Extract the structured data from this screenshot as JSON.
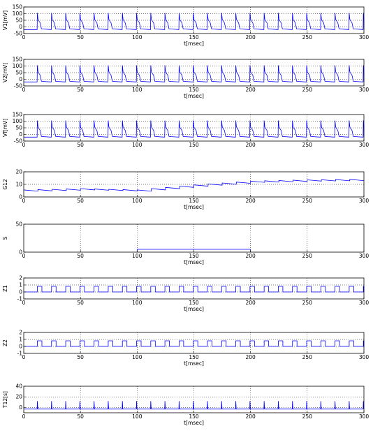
{
  "chart_data": [
    {
      "type": "line",
      "ylabel": "V1[mV]",
      "xlabel": "t[msec]",
      "xlim": [
        0,
        300
      ],
      "ylim": [
        -50,
        150
      ],
      "yticks": [
        -50,
        0,
        50,
        100,
        150
      ],
      "xticks": [
        0,
        50,
        100,
        150,
        200,
        250,
        300
      ],
      "grid": "dotted",
      "series": [
        {
          "kind": "spikes",
          "period": 12.5,
          "first_spike": 12,
          "rest": -20,
          "peak": 105,
          "plateau": 30,
          "color": "#0000ff"
        }
      ]
    },
    {
      "type": "line",
      "ylabel": "V2[mV]",
      "xlabel": "t[msec]",
      "xlim": [
        0,
        300
      ],
      "ylim": [
        -50,
        150
      ],
      "yticks": [
        -50,
        0,
        50,
        100,
        150
      ],
      "xticks": [
        0,
        50,
        100,
        150,
        200,
        250,
        300
      ],
      "grid": "dotted",
      "series": [
        {
          "kind": "spikes",
          "period": 12.5,
          "first_spike": 12,
          "rest": -20,
          "peak": 105,
          "plateau": 30,
          "color": "#0000ff"
        }
      ]
    },
    {
      "type": "line",
      "ylabel": "Vf[mV]",
      "xlabel": "",
      "xlim": [
        0,
        300
      ],
      "ylim": [
        -50,
        150
      ],
      "yticks": [
        -50,
        0,
        50,
        100,
        150
      ],
      "xticks": [
        0,
        50,
        100,
        150,
        200,
        250,
        300
      ],
      "grid": "dotted",
      "series": [
        {
          "kind": "spikes",
          "period": 12.5,
          "first_spike": 12,
          "rest": -20,
          "peak": 105,
          "plateau": 30,
          "color": "#0000ff"
        }
      ]
    },
    {
      "type": "line",
      "ylabel": "G12",
      "xlabel": "t[msec]",
      "xlim": [
        0,
        300
      ],
      "ylim": [
        0,
        20
      ],
      "yticks": [
        0,
        10,
        20
      ],
      "xticks": [
        0,
        50,
        100,
        150,
        200,
        250,
        300
      ],
      "grid": "dotted",
      "series": [
        {
          "kind": "points",
          "color": "#0000ff",
          "x": [
            0,
            50,
            100,
            150,
            200,
            250,
            300
          ],
          "y": [
            5,
            6,
            5,
            9,
            12,
            13,
            13.5
          ]
        }
      ]
    },
    {
      "type": "line",
      "ylabel": "S",
      "xlabel": "t[msec]",
      "xlim": [
        0,
        300
      ],
      "ylim": [
        0,
        50
      ],
      "yticks": [
        0,
        50
      ],
      "xticks": [
        0,
        50,
        100,
        150,
        200,
        250,
        300
      ],
      "grid": "dotted-vertical",
      "series": [
        {
          "kind": "step",
          "color": "#0000ff",
          "start": 100,
          "end": 200,
          "high": 5,
          "low": 0
        }
      ]
    },
    {
      "type": "line",
      "ylabel": "Z1",
      "xlabel": "t[msec]",
      "xlim": [
        0,
        300
      ],
      "ylim": [
        -1,
        2
      ],
      "yticks": [
        -1,
        0,
        1,
        2
      ],
      "xticks": [
        0,
        50,
        100,
        150,
        200,
        250,
        300
      ],
      "grid": "dotted",
      "series": [
        {
          "kind": "pulses",
          "period": 12.5,
          "first_spike": 12,
          "width": 4,
          "high": 0.8,
          "low": 0,
          "color": "#0000ff"
        }
      ]
    },
    {
      "type": "line",
      "ylabel": "Z2",
      "xlabel": "t[msec]",
      "xlim": [
        0,
        300
      ],
      "ylim": [
        -1,
        2
      ],
      "yticks": [
        -1,
        0,
        1,
        2
      ],
      "xticks": [
        0,
        50,
        100,
        150,
        200,
        250,
        300
      ],
      "grid": "dotted",
      "series": [
        {
          "kind": "pulses",
          "period": 12.5,
          "first_spike": 12,
          "width": 4,
          "high": 0.8,
          "low": 0,
          "color": "#0000ff"
        }
      ]
    },
    {
      "type": "line",
      "ylabel": "T12[s]",
      "xlabel": "t[msec]",
      "xlim": [
        0,
        300
      ],
      "ylim": [
        -10,
        40
      ],
      "yticks": [
        0,
        20,
        40
      ],
      "xticks": [
        0,
        50,
        100,
        150,
        200,
        250,
        300
      ],
      "grid": "dotted",
      "series": [
        {
          "kind": "spikes-thin",
          "period": 12.5,
          "first_spike": 12,
          "rest": -3,
          "peak": 12,
          "color": "#0000ff"
        }
      ]
    }
  ]
}
